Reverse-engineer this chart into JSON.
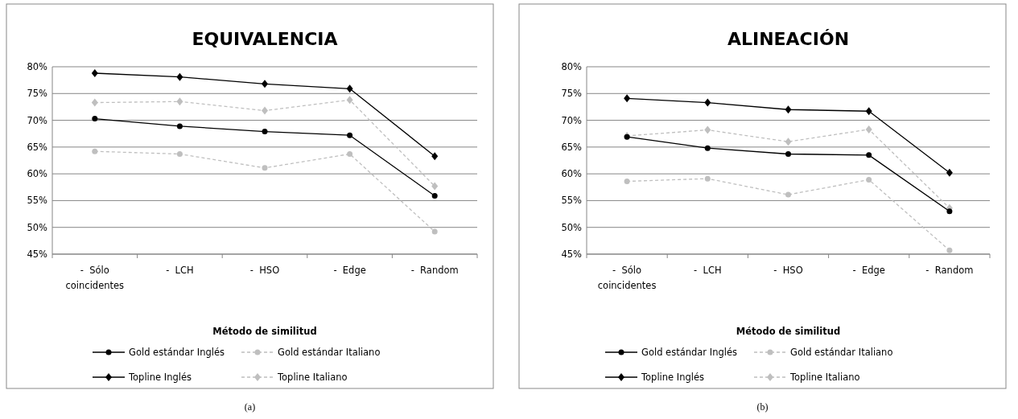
{
  "chart_data": [
    {
      "type": "line",
      "title": "EQUIVALENCIA",
      "xlabel": "Método de similitud",
      "categories": [
        "-  Sólo coincidentes",
        "-  LCH",
        "-  HSO",
        "-  Edge",
        "-  Random"
      ],
      "ylim": [
        45,
        80
      ],
      "yticks": [
        {
          "value": 45,
          "label": "45%"
        },
        {
          "value": 50,
          "label": "50%"
        },
        {
          "value": 55,
          "label": "55%"
        },
        {
          "value": 60,
          "label": "60%"
        },
        {
          "value": 65,
          "label": "65%"
        },
        {
          "value": 70,
          "label": "70%"
        },
        {
          "value": 75,
          "label": "75%"
        },
        {
          "value": 80,
          "label": "80%"
        }
      ],
      "grid": "y",
      "legend": "bottom",
      "annotations": [
        "(a)"
      ],
      "series": [
        {
          "name": "Gold estándar Inglés",
          "color": "#000000",
          "marker": "circle",
          "line_style": "solid",
          "values": [
            70.3,
            68.9,
            67.9,
            67.2,
            55.9
          ]
        },
        {
          "name": "Gold estándar Italiano",
          "color": "#bfbfbf",
          "marker": "circle",
          "line_style": "dashed",
          "values": [
            64.2,
            63.7,
            61.1,
            63.7,
            49.2
          ]
        },
        {
          "name": "Topline Inglés",
          "color": "#000000",
          "marker": "diamond",
          "line_style": "solid",
          "values": [
            78.8,
            78.1,
            76.8,
            75.9,
            63.3
          ]
        },
        {
          "name": "Topline Italiano",
          "color": "#bfbfbf",
          "marker": "diamond",
          "line_style": "dashed",
          "values": [
            73.3,
            73.5,
            71.8,
            73.8,
            57.7
          ]
        }
      ]
    },
    {
      "type": "line",
      "title": "ALINEACIÓN",
      "xlabel": "Método de similitud",
      "categories": [
        "-  Sólo coincidentes",
        "-  LCH",
        "-  HSO",
        "-  Edge",
        "-  Random"
      ],
      "ylim": [
        45,
        80
      ],
      "yticks": [
        {
          "value": 45,
          "label": "45%"
        },
        {
          "value": 50,
          "label": "50%"
        },
        {
          "value": 55,
          "label": "55%"
        },
        {
          "value": 60,
          "label": "60%"
        },
        {
          "value": 65,
          "label": "65%"
        },
        {
          "value": 70,
          "label": "70%"
        },
        {
          "value": 75,
          "label": "75%"
        },
        {
          "value": 80,
          "label": "80%"
        }
      ],
      "grid": "y",
      "legend": "bottom",
      "annotations": [
        "(b)"
      ],
      "series": [
        {
          "name": "Gold estándar Inglés",
          "color": "#000000",
          "marker": "circle",
          "line_style": "solid",
          "values": [
            66.9,
            64.8,
            63.7,
            63.5,
            53.0
          ]
        },
        {
          "name": "Gold estándar Italiano",
          "color": "#bfbfbf",
          "marker": "circle",
          "line_style": "dashed",
          "values": [
            58.6,
            59.1,
            56.1,
            58.9,
            45.7
          ]
        },
        {
          "name": "Topline Inglés",
          "color": "#000000",
          "marker": "diamond",
          "line_style": "solid",
          "values": [
            74.1,
            73.3,
            72.0,
            71.7,
            60.2
          ]
        },
        {
          "name": "Topline Italiano",
          "color": "#bfbfbf",
          "marker": "diamond",
          "line_style": "dashed",
          "values": [
            67.1,
            68.2,
            66.0,
            68.3,
            53.6
          ]
        }
      ]
    }
  ]
}
